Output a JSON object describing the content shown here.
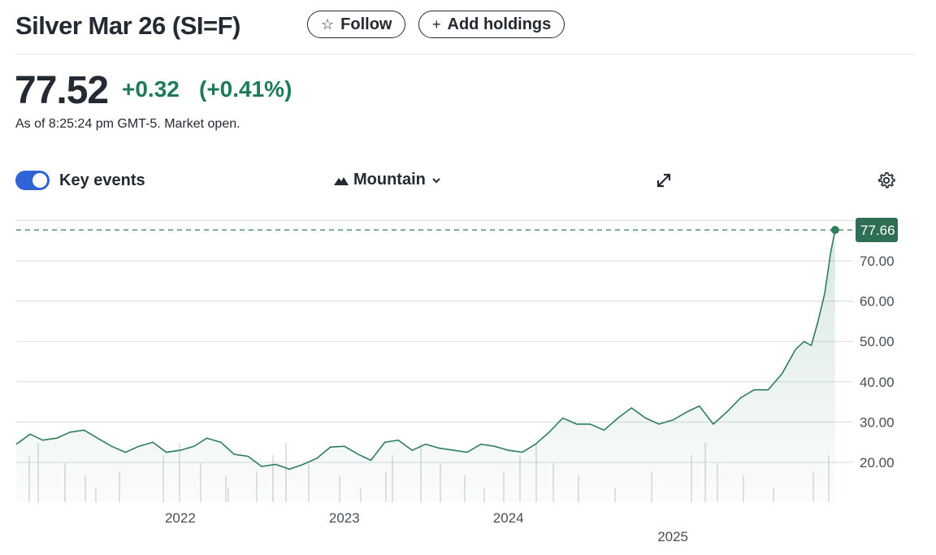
{
  "header": {
    "title": "Silver Mar 26 (SI=F)",
    "follow_label": "Follow",
    "follow_icon": "star-icon",
    "add_holdings_label": "Add holdings",
    "add_icon": "plus-icon"
  },
  "quote": {
    "price": "77.52",
    "change": "+0.32",
    "change_pct": "(+0.41%)",
    "as_of": "As of 8:25:24 pm GMT-5. Market open.",
    "positive_color": "#1e7a5a"
  },
  "controls": {
    "key_events_label": "Key events",
    "key_events_on": true,
    "chart_type_label": "Mountain",
    "expand_icon": "expand-icon",
    "settings_icon": "gear-icon"
  },
  "chart_data": {
    "type": "area",
    "ylim": [
      10,
      80
    ],
    "yticks": [
      "20.00",
      "30.00",
      "40.00",
      "50.00",
      "60.00",
      "70.00"
    ],
    "ytick_values": [
      20,
      30,
      40,
      50,
      60,
      70,
      80
    ],
    "xticks": [
      "2022",
      "2023",
      "2024",
      "2025"
    ],
    "xlim": [
      "2021-01-01",
      "2026-01-01"
    ],
    "last_value_label": "77.66",
    "last_value": 77.66,
    "line_color": "#2e7d5b",
    "grid": true,
    "points": [
      [
        "2021-01-01",
        24.5
      ],
      [
        "2021-02-01",
        27
      ],
      [
        "2021-03-01",
        25.5
      ],
      [
        "2021-04-01",
        26
      ],
      [
        "2021-05-01",
        27.5
      ],
      [
        "2021-06-01",
        28
      ],
      [
        "2021-07-01",
        26
      ],
      [
        "2021-08-01",
        24
      ],
      [
        "2021-09-01",
        22.5
      ],
      [
        "2021-10-01",
        24
      ],
      [
        "2021-11-01",
        25
      ],
      [
        "2021-12-01",
        22.5
      ],
      [
        "2022-01-01",
        23
      ],
      [
        "2022-02-01",
        24
      ],
      [
        "2022-03-01",
        26
      ],
      [
        "2022-04-01",
        25
      ],
      [
        "2022-05-01",
        22
      ],
      [
        "2022-06-01",
        21.5
      ],
      [
        "2022-07-01",
        19
      ],
      [
        "2022-08-01",
        19.5
      ],
      [
        "2022-09-01",
        18.3
      ],
      [
        "2022-10-01",
        19.5
      ],
      [
        "2022-11-01",
        21
      ],
      [
        "2022-12-01",
        23.8
      ],
      [
        "2023-01-01",
        24
      ],
      [
        "2023-02-01",
        22
      ],
      [
        "2023-03-01",
        20.5
      ],
      [
        "2023-04-01",
        25
      ],
      [
        "2023-05-01",
        25.5
      ],
      [
        "2023-06-01",
        23
      ],
      [
        "2023-07-01",
        24.5
      ],
      [
        "2023-08-01",
        23.5
      ],
      [
        "2023-09-01",
        23
      ],
      [
        "2023-10-01",
        22.5
      ],
      [
        "2023-11-01",
        24.5
      ],
      [
        "2023-12-01",
        24
      ],
      [
        "2024-01-01",
        23
      ],
      [
        "2024-02-01",
        22.5
      ],
      [
        "2024-03-01",
        24.5
      ],
      [
        "2024-04-01",
        27.5
      ],
      [
        "2024-05-01",
        31
      ],
      [
        "2024-06-01",
        29.5
      ],
      [
        "2024-07-01",
        29.5
      ],
      [
        "2024-08-01",
        28
      ],
      [
        "2024-09-01",
        31
      ],
      [
        "2024-10-01",
        33.5
      ],
      [
        "2024-11-01",
        31
      ],
      [
        "2024-12-01",
        29.5
      ],
      [
        "2025-01-01",
        30.5
      ],
      [
        "2025-02-01",
        32.5
      ],
      [
        "2025-03-01",
        34
      ],
      [
        "2025-04-01",
        29.5
      ],
      [
        "2025-05-01",
        32.5
      ],
      [
        "2025-06-01",
        36
      ],
      [
        "2025-07-01",
        38
      ],
      [
        "2025-08-01",
        38
      ],
      [
        "2025-09-01",
        42
      ],
      [
        "2025-10-01",
        48
      ],
      [
        "2025-10-20",
        50
      ],
      [
        "2025-11-05",
        49
      ],
      [
        "2025-11-20",
        55
      ],
      [
        "2025-12-05",
        62
      ],
      [
        "2025-12-18",
        72
      ],
      [
        "2025-12-28",
        77.66
      ]
    ]
  }
}
